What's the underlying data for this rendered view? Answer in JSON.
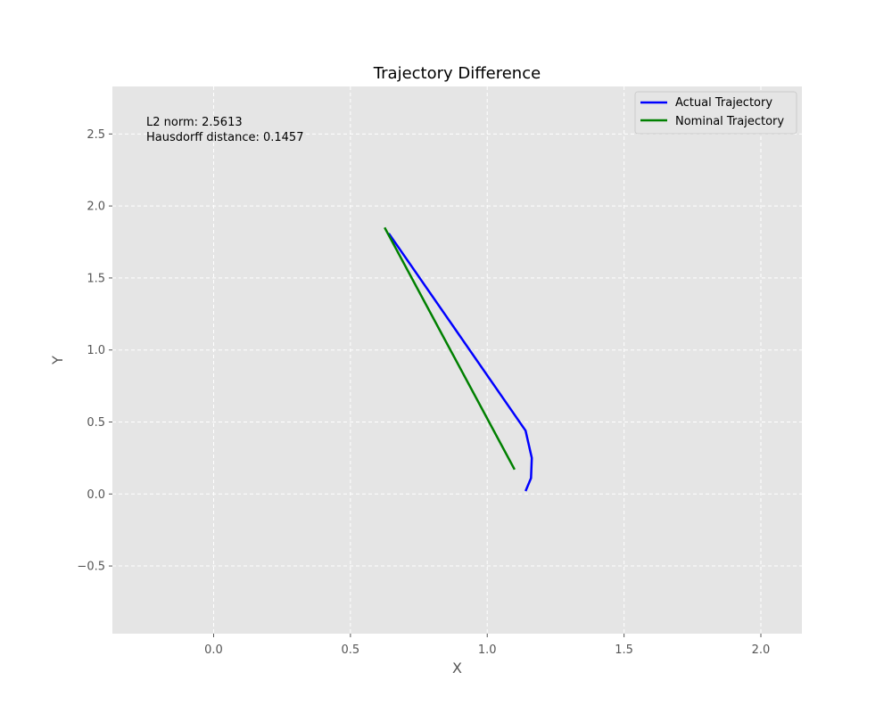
{
  "chart_data": {
    "type": "line",
    "title": "Trajectory Difference",
    "xlabel": "X",
    "ylabel": "Y",
    "xlim": [
      -0.37,
      2.15
    ],
    "ylim": [
      -0.97,
      2.83
    ],
    "xticks": [
      0.0,
      0.5,
      1.0,
      1.5,
      2.0
    ],
    "xtick_labels": [
      "0.0",
      "0.5",
      "1.0",
      "1.5",
      "2.0"
    ],
    "yticks": [
      -0.5,
      0.0,
      0.5,
      1.0,
      1.5,
      2.0,
      2.5
    ],
    "ytick_labels": [
      "−0.5",
      "0.0",
      "0.5",
      "1.0",
      "1.5",
      "2.0",
      "2.5"
    ],
    "grid": true,
    "legend_position": "top-right",
    "series": [
      {
        "name": "Actual Trajectory",
        "color": "#0000ff",
        "x": [
          0.64,
          1.14,
          1.163,
          1.16,
          1.14
        ],
        "y": [
          1.81,
          0.44,
          0.25,
          0.11,
          0.02
        ]
      },
      {
        "name": "Nominal Trajectory",
        "color": "#008000",
        "x": [
          0.625,
          1.1
        ],
        "y": [
          1.85,
          0.17
        ]
      }
    ],
    "annotations": [
      "L2 norm: 2.5613",
      "Hausdorff distance: 0.1457"
    ]
  }
}
